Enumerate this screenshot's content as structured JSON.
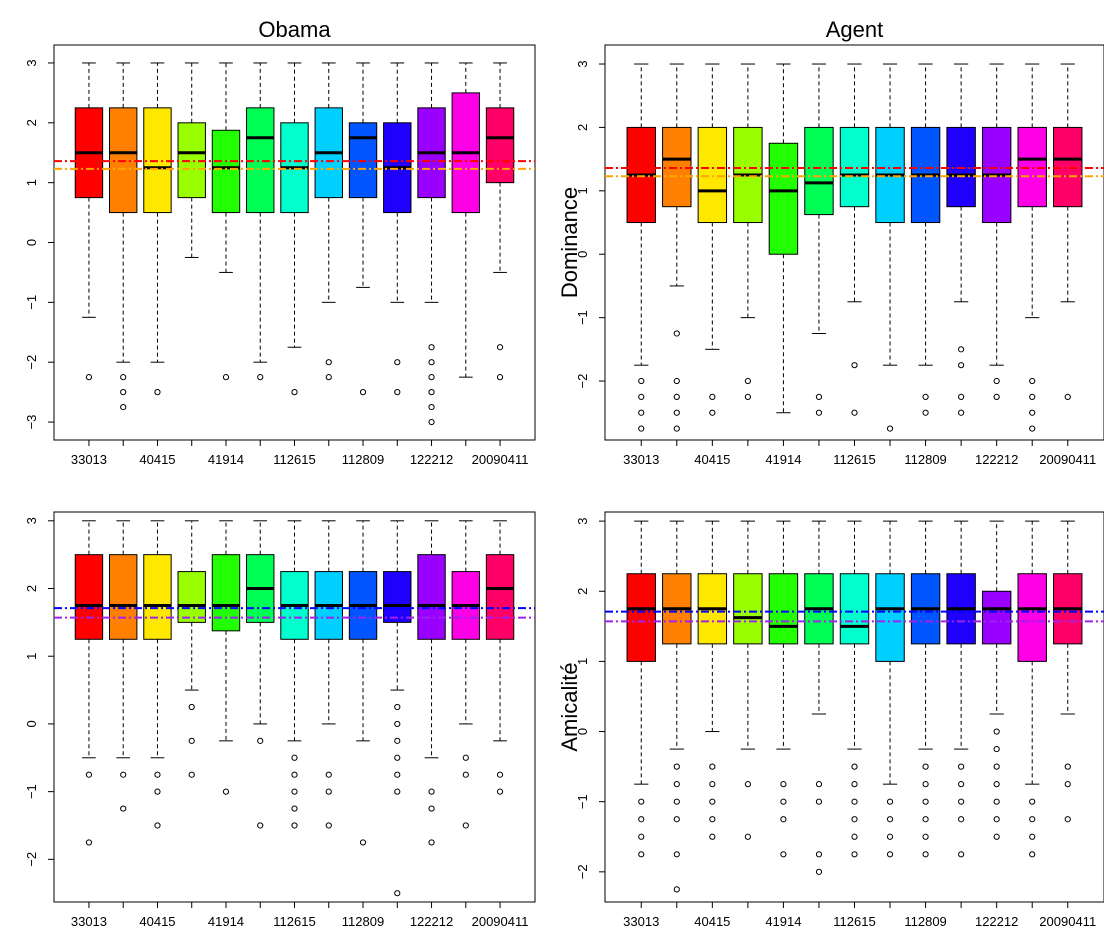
{
  "colors": [
    "#FF0000",
    "#FF8000",
    "#FFE800",
    "#99FF00",
    "#22FF00",
    "#00FF55",
    "#00FFCC",
    "#00D0FF",
    "#0055FF",
    "#1F00FF",
    "#9900FF",
    "#FF00E6",
    "#FF0066"
  ],
  "refline_colors": {
    "top": [
      "#FF0000",
      "#FFA500"
    ],
    "bottom": [
      "#0000FF",
      "#A020F0"
    ]
  },
  "chart_data": [
    {
      "id": "obama-dominance",
      "type": "boxplot",
      "title": "Obama",
      "ylabel": "",
      "ylim": [
        -3.3,
        3.3
      ],
      "yticks": [
        -3,
        -2,
        -1,
        0,
        1,
        2,
        3
      ],
      "xtick_labels": [
        "33013",
        "40415",
        "41914",
        "112615",
        "112809",
        "122212",
        "20090411"
      ],
      "reflines": [
        1.36,
        1.23
      ],
      "boxes": [
        {
          "q1": 0.75,
          "med": 1.5,
          "q3": 2.25,
          "lo": -1.25,
          "hi": 3,
          "out": [
            -2.25
          ]
        },
        {
          "q1": 0.5,
          "med": 1.5,
          "q3": 2.25,
          "lo": -2,
          "hi": 3,
          "out": [
            -2.25,
            -2.5,
            -2.75
          ]
        },
        {
          "q1": 0.5,
          "med": 1.25,
          "q3": 2.25,
          "lo": -2,
          "hi": 3,
          "out": [
            -2.5
          ]
        },
        {
          "q1": 0.75,
          "med": 1.5,
          "q3": 2,
          "lo": -0.25,
          "hi": 3,
          "out": []
        },
        {
          "q1": 0.5,
          "med": 1.25,
          "q3": 1.875,
          "lo": -0.5,
          "hi": 3,
          "out": [
            -2.25
          ]
        },
        {
          "q1": 0.5,
          "med": 1.75,
          "q3": 2.25,
          "lo": -2,
          "hi": 3,
          "out": [
            -2.25
          ]
        },
        {
          "q1": 0.5,
          "med": 1.25,
          "q3": 2,
          "lo": -1.75,
          "hi": 3,
          "out": [
            -2.5
          ]
        },
        {
          "q1": 0.75,
          "med": 1.5,
          "q3": 2.25,
          "lo": -1,
          "hi": 3,
          "out": [
            -2,
            -2.25
          ]
        },
        {
          "q1": 0.75,
          "med": 1.75,
          "q3": 2,
          "lo": -0.75,
          "hi": 3,
          "out": [
            -2.5
          ]
        },
        {
          "q1": 0.5,
          "med": 1.25,
          "q3": 2,
          "lo": -1,
          "hi": 3,
          "out": [
            -2,
            -2.5
          ]
        },
        {
          "q1": 0.75,
          "med": 1.5,
          "q3": 2.25,
          "lo": -1,
          "hi": 3,
          "out": [
            -1.75,
            -2,
            -2.25,
            -2.5,
            -2.75,
            -3
          ]
        },
        {
          "q1": 0.5,
          "med": 1.5,
          "q3": 2.5,
          "lo": -2.25,
          "hi": 3,
          "out": []
        },
        {
          "q1": 1,
          "med": 1.75,
          "q3": 2.25,
          "lo": -0.5,
          "hi": 3,
          "out": [
            -1.75,
            -2.25
          ]
        }
      ]
    },
    {
      "id": "agent-dominance",
      "type": "boxplot",
      "title": "Agent",
      "ylabel": "Dominance",
      "ylim": [
        -2.93,
        3.3
      ],
      "yticks": [
        -2,
        -1,
        0,
        1,
        2,
        3
      ],
      "xtick_labels": [
        "33013",
        "40415",
        "41914",
        "112615",
        "112809",
        "122212",
        "20090411"
      ],
      "reflines": [
        1.36,
        1.23
      ],
      "boxes": [
        {
          "q1": 0.5,
          "med": 1.25,
          "q3": 2,
          "lo": -1.75,
          "hi": 3,
          "out": [
            -2,
            -2.25,
            -2.5,
            -2.75
          ]
        },
        {
          "q1": 0.75,
          "med": 1.5,
          "q3": 2,
          "lo": -0.5,
          "hi": 3,
          "out": [
            -1.25,
            -2,
            -2.25,
            -2.5,
            -2.75
          ]
        },
        {
          "q1": 0.5,
          "med": 1,
          "q3": 2,
          "lo": -1.5,
          "hi": 3,
          "out": [
            -2.25,
            -2.5
          ]
        },
        {
          "q1": 0.5,
          "med": 1.25,
          "q3": 2,
          "lo": -1,
          "hi": 3,
          "out": [
            -2,
            -2.25
          ]
        },
        {
          "q1": 0,
          "med": 1,
          "q3": 1.75,
          "lo": -2.5,
          "hi": 3,
          "out": []
        },
        {
          "q1": 0.625,
          "med": 1.125,
          "q3": 2,
          "lo": -1.25,
          "hi": 3,
          "out": [
            -2.25,
            -2.5
          ]
        },
        {
          "q1": 0.75,
          "med": 1.25,
          "q3": 2,
          "lo": -0.75,
          "hi": 3,
          "out": [
            -1.75,
            -2.5
          ]
        },
        {
          "q1": 0.5,
          "med": 1.25,
          "q3": 2,
          "lo": -1.75,
          "hi": 3,
          "out": [
            -2.75
          ]
        },
        {
          "q1": 0.5,
          "med": 1.25,
          "q3": 2,
          "lo": -1.75,
          "hi": 3,
          "out": [
            -2.25,
            -2.5
          ]
        },
        {
          "q1": 0.75,
          "med": 1.25,
          "q3": 2,
          "lo": -0.75,
          "hi": 3,
          "out": [
            -1.5,
            -1.75,
            -2.25,
            -2.5
          ]
        },
        {
          "q1": 0.5,
          "med": 1.25,
          "q3": 2,
          "lo": -1.75,
          "hi": 3,
          "out": [
            -2,
            -2.25
          ]
        },
        {
          "q1": 0.75,
          "med": 1.5,
          "q3": 2,
          "lo": -1,
          "hi": 3,
          "out": [
            -2,
            -2.25,
            -2.5,
            -2.75
          ]
        },
        {
          "q1": 0.75,
          "med": 1.5,
          "q3": 2,
          "lo": -0.75,
          "hi": 3,
          "out": [
            -2.25
          ]
        }
      ]
    },
    {
      "id": "obama-amicalite",
      "type": "boxplot",
      "title": "",
      "ylabel": "",
      "ylim": [
        -2.63,
        3.13
      ],
      "yticks": [
        -2,
        -1,
        0,
        1,
        2,
        3
      ],
      "xtick_labels": [
        "33013",
        "40415",
        "41914",
        "112615",
        "112809",
        "122212",
        "20090411"
      ],
      "reflines": [
        1.71,
        1.57
      ],
      "boxes": [
        {
          "q1": 1.25,
          "med": 1.75,
          "q3": 2.5,
          "lo": -0.5,
          "hi": 3,
          "out": [
            -0.75,
            -1.75
          ]
        },
        {
          "q1": 1.25,
          "med": 1.75,
          "q3": 2.5,
          "lo": -0.5,
          "hi": 3,
          "out": [
            -0.75,
            -1.25
          ]
        },
        {
          "q1": 1.25,
          "med": 1.75,
          "q3": 2.5,
          "lo": -0.5,
          "hi": 3,
          "out": [
            -0.75,
            -1,
            -1.5
          ]
        },
        {
          "q1": 1.5,
          "med": 1.75,
          "q3": 2.25,
          "lo": 0.5,
          "hi": 3,
          "out": [
            0.25,
            -0.25,
            -0.75
          ]
        },
        {
          "q1": 1.375,
          "med": 1.75,
          "q3": 2.5,
          "lo": -0.25,
          "hi": 3,
          "out": [
            -1
          ]
        },
        {
          "q1": 1.5,
          "med": 2,
          "q3": 2.5,
          "lo": 0,
          "hi": 3,
          "out": [
            -0.25,
            -1.5
          ]
        },
        {
          "q1": 1.25,
          "med": 1.75,
          "q3": 2.25,
          "lo": -0.25,
          "hi": 3,
          "out": [
            -0.5,
            -0.75,
            -1,
            -1.25,
            -1.5
          ]
        },
        {
          "q1": 1.25,
          "med": 1.75,
          "q3": 2.25,
          "lo": 0,
          "hi": 3,
          "out": [
            -0.75,
            -1,
            -1.5
          ]
        },
        {
          "q1": 1.25,
          "med": 1.75,
          "q3": 2.25,
          "lo": -0.25,
          "hi": 3,
          "out": [
            -1.75
          ]
        },
        {
          "q1": 1.5,
          "med": 1.75,
          "q3": 2.25,
          "lo": 0.5,
          "hi": 3,
          "out": [
            0.25,
            0,
            -0.25,
            -0.5,
            -0.75,
            -1,
            -2.5
          ]
        },
        {
          "q1": 1.25,
          "med": 1.75,
          "q3": 2.5,
          "lo": -0.5,
          "hi": 3,
          "out": [
            -1,
            -1.25,
            -1.75
          ]
        },
        {
          "q1": 1.25,
          "med": 1.75,
          "q3": 2.25,
          "lo": 0,
          "hi": 3,
          "out": [
            -0.5,
            -0.75,
            -1.5
          ]
        },
        {
          "q1": 1.25,
          "med": 2,
          "q3": 2.5,
          "lo": -0.25,
          "hi": 3,
          "out": [
            -0.75,
            -1
          ]
        }
      ]
    },
    {
      "id": "agent-amicalite",
      "type": "boxplot",
      "title": "",
      "ylabel": "Amicalité",
      "ylim": [
        -2.43,
        3.13
      ],
      "yticks": [
        -2,
        -1,
        0,
        1,
        2,
        3
      ],
      "xtick_labels": [
        "33013",
        "40415",
        "41914",
        "112615",
        "112809",
        "122212",
        "20090411"
      ],
      "reflines": [
        1.71,
        1.57
      ],
      "boxes": [
        {
          "q1": 1,
          "med": 1.75,
          "q3": 2.25,
          "lo": -0.75,
          "hi": 3,
          "out": [
            -1,
            -1.25,
            -1.5,
            -1.75
          ]
        },
        {
          "q1": 1.25,
          "med": 1.75,
          "q3": 2.25,
          "lo": -0.25,
          "hi": 3,
          "out": [
            -0.5,
            -0.75,
            -1,
            -1.25,
            -1.75,
            -2.25
          ]
        },
        {
          "q1": 1.25,
          "med": 1.75,
          "q3": 2.25,
          "lo": 0,
          "hi": 3,
          "out": [
            -0.5,
            -0.75,
            -1,
            -1.25,
            -1.5
          ]
        },
        {
          "q1": 1.25,
          "med": 1.625,
          "q3": 2.25,
          "lo": -0.25,
          "hi": 3,
          "out": [
            -0.75,
            -1.5
          ]
        },
        {
          "q1": 1.25,
          "med": 1.5,
          "q3": 2.25,
          "lo": -0.25,
          "hi": 3,
          "out": [
            -0.75,
            -1,
            -1.25,
            -1.75
          ]
        },
        {
          "q1": 1.25,
          "med": 1.75,
          "q3": 2.25,
          "lo": 0.25,
          "hi": 3,
          "out": [
            -0.75,
            -1,
            -1.75,
            -2
          ]
        },
        {
          "q1": 1.25,
          "med": 1.5,
          "q3": 2.25,
          "lo": -0.25,
          "hi": 3,
          "out": [
            -0.5,
            -0.75,
            -1,
            -1.25,
            -1.5,
            -1.75
          ]
        },
        {
          "q1": 1,
          "med": 1.75,
          "q3": 2.25,
          "lo": -0.75,
          "hi": 3,
          "out": [
            -1,
            -1.25,
            -1.5,
            -1.75
          ]
        },
        {
          "q1": 1.25,
          "med": 1.75,
          "q3": 2.25,
          "lo": -0.25,
          "hi": 3,
          "out": [
            -0.5,
            -0.75,
            -1,
            -1.25,
            -1.5,
            -1.75
          ]
        },
        {
          "q1": 1.25,
          "med": 1.75,
          "q3": 2.25,
          "lo": -0.25,
          "hi": 3,
          "out": [
            -0.5,
            -0.75,
            -1,
            -1.25,
            -1.75
          ]
        },
        {
          "q1": 1.25,
          "med": 1.75,
          "q3": 2,
          "lo": 0.25,
          "hi": 3,
          "out": [
            0,
            -0.25,
            -0.5,
            -0.75,
            -1,
            -1.25,
            -1.5
          ]
        },
        {
          "q1": 1,
          "med": 1.75,
          "q3": 2.25,
          "lo": -0.75,
          "hi": 3,
          "out": [
            -1,
            -1.25,
            -1.5,
            -1.75
          ]
        },
        {
          "q1": 1.25,
          "med": 1.75,
          "q3": 2.25,
          "lo": 0.25,
          "hi": 3,
          "out": [
            -0.5,
            -0.75,
            -1.25
          ]
        }
      ]
    }
  ]
}
